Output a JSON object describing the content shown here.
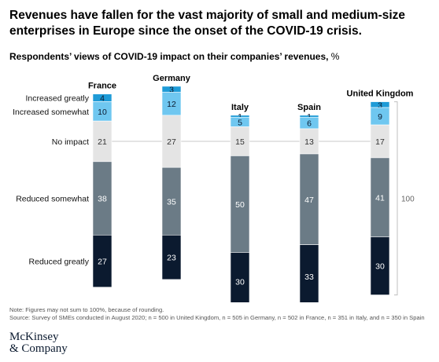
{
  "title": "Revenues have fallen for the vast majority of small and medium-size enterprises in Europe since the onset of the COVID-19 crisis.",
  "subtitle": {
    "main": "Respondents’ views of COVID-19 impact on their companies’ revenues,",
    "unit": " %"
  },
  "notes": {
    "note": "Note: Figures may not sum to 100%, because of rounding.",
    "source": "Source: Survey of SMEs conducted in August 2020; n = 500 in United Kingdom, n = 505 in Germany, n = 502 in France, n = 351 in Italy, and n = 350 in Spain"
  },
  "logo": {
    "line1": "McKinsey",
    "line2": "& Company"
  },
  "chart_data": {
    "type": "bar",
    "stacked": true,
    "categories": [
      "France",
      "Germany",
      "Italy",
      "Spain",
      "United Kingdom"
    ],
    "series": [
      {
        "name": "Increased greatly",
        "values": [
          4,
          3,
          1,
          1,
          3
        ],
        "color": "#1e9bd7",
        "text_color": "#0b1a2f"
      },
      {
        "name": "Increased somewhat",
        "values": [
          10,
          12,
          5,
          6,
          9
        ],
        "color": "#6fc7f0",
        "text_color": "#0b1a2f"
      },
      {
        "name": "No impact",
        "values": [
          21,
          27,
          15,
          13,
          17
        ],
        "color": "#e4e4e4",
        "text_color": "#333333"
      },
      {
        "name": "Reduced somewhat",
        "values": [
          38,
          35,
          50,
          47,
          41
        ],
        "color": "#6b7b86",
        "text_color": "#ffffff"
      },
      {
        "name": "Reduced greatly",
        "values": [
          27,
          23,
          30,
          33,
          30
        ],
        "color": "#0b1a2f",
        "text_color": "#ffffff"
      }
    ],
    "total_bracket_label": "100",
    "legend_placement": "left"
  }
}
